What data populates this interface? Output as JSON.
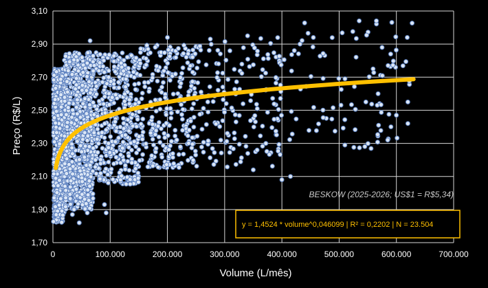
{
  "chart_data": {
    "type": "scatter",
    "xlabel": "Volume  (L/mês)",
    "ylabel": "Preço  (R$/L)",
    "xlim": [
      0,
      700000
    ],
    "ylim": [
      1.7,
      3.1
    ],
    "x_ticks": [
      0,
      100000,
      200000,
      300000,
      400000,
      500000,
      600000,
      700000
    ],
    "x_tick_labels": [
      "0",
      "100.000",
      "200.000",
      "300.000",
      "400.000",
      "500.000",
      "600.000",
      "700.000"
    ],
    "y_ticks": [
      1.7,
      1.9,
      2.1,
      2.3,
      2.5,
      2.7,
      2.9,
      3.1
    ],
    "y_tick_labels": [
      "1,70",
      "1,90",
      "2,10",
      "2,30",
      "2,50",
      "2,70",
      "2,90",
      "3,10"
    ],
    "grid": true,
    "source_note": "BESKOW (2025-2026; US$1 = R$5,34)",
    "equation_text": "y = 1,4524 * volume^0,046099   |   R² = 0,2202   |   N = 23.504",
    "trendline": {
      "a": 1.4524,
      "b": 0.046099,
      "x_range": [
        5000,
        630000
      ],
      "r2": 0.2202,
      "n": 23504
    },
    "series": [
      {
        "clusters": [
          {
            "x": [
              1000,
              20000
            ],
            "y": [
              1.82,
              2.75
            ],
            "count": 900
          },
          {
            "x": [
              20000,
              70000
            ],
            "y": [
              1.9,
              2.85
            ],
            "count": 900
          },
          {
            "x": [
              70000,
              150000
            ],
            "y": [
              2.05,
              2.85
            ],
            "count": 500
          },
          {
            "x": [
              150000,
              250000
            ],
            "y": [
              2.15,
              2.9
            ],
            "count": 280
          },
          {
            "x": [
              250000,
              400000
            ],
            "y": [
              2.15,
              2.95
            ],
            "count": 160
          },
          {
            "x": [
              400000,
              630000
            ],
            "y": [
              2.25,
              3.04
            ],
            "count": 90
          }
        ],
        "points": [
          [
            65000,
            2.92
          ],
          [
            200000,
            2.94
          ],
          [
            340000,
            2.95
          ],
          [
            535000,
            3.04
          ],
          [
            565000,
            3.04
          ],
          [
            415000,
            2.1
          ],
          [
            400000,
            2.08
          ],
          [
            372000,
            2.3
          ],
          [
            350000,
            2.14
          ],
          [
            620000,
            2.42
          ],
          [
            600000,
            2.47
          ],
          [
            90000,
            1.93
          ],
          [
            93000,
            1.88
          ],
          [
            46000,
            1.82
          ],
          [
            34000,
            1.87
          ],
          [
            60000,
            1.88
          ],
          [
            590000,
            2.84
          ],
          [
            575000,
            2.88
          ],
          [
            620000,
            2.55
          ],
          [
            510000,
            2.29
          ],
          [
            275000,
            2.93
          ],
          [
            455000,
            2.94
          ]
        ]
      }
    ]
  }
}
